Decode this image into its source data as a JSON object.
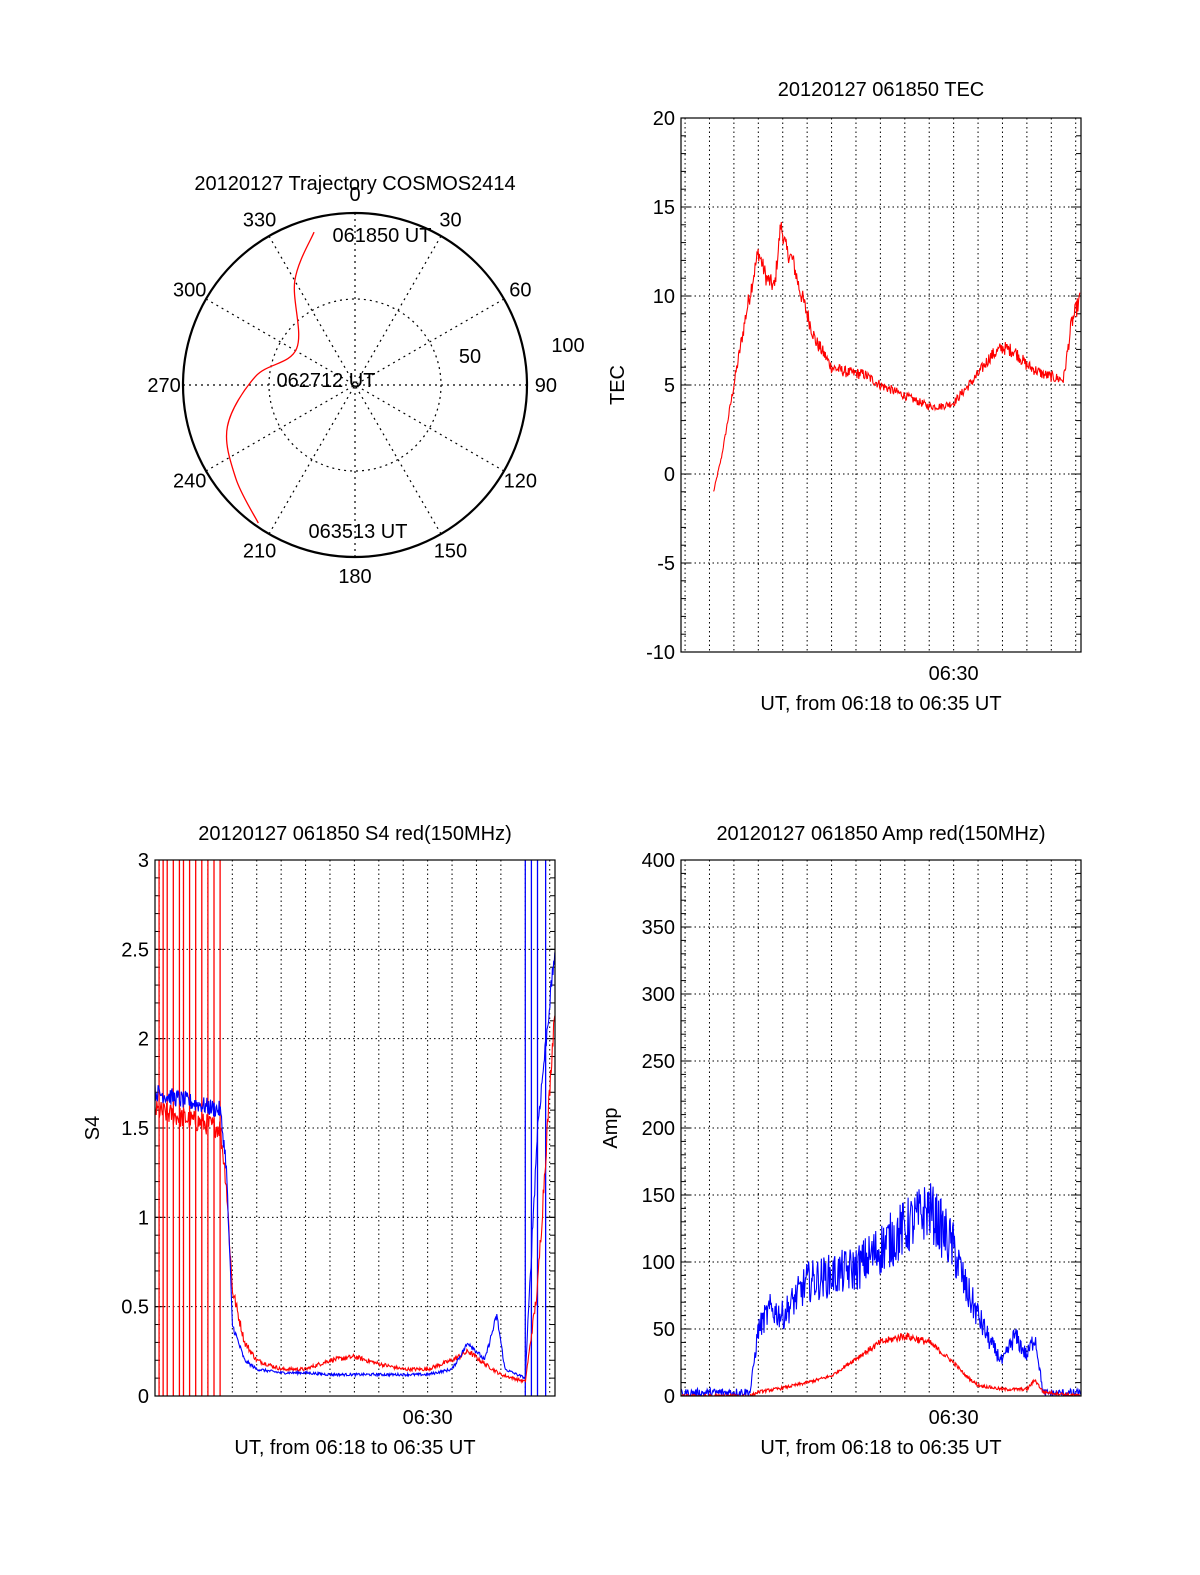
{
  "colors": {
    "red": "#ff0000",
    "blue": "#0000ff",
    "axis": "#000000",
    "grid": "#000000"
  },
  "chart_data": [
    {
      "id": "polar",
      "type": "polar",
      "title": "20120127 Trajectory COSMOS2414",
      "azimuth_labels": [
        "0",
        "30",
        "60",
        "90",
        "120",
        "150",
        "180",
        "210",
        "240",
        "270",
        "300",
        "330"
      ],
      "radial_labels": [
        "50",
        "100"
      ],
      "rlim": [
        0,
        100
      ],
      "grid": true,
      "track": {
        "color": "red",
        "points": [
          [
            345,
            92
          ],
          [
            330,
            70
          ],
          [
            302,
            40
          ],
          [
            275,
            58
          ],
          [
            252,
            78
          ],
          [
            232,
            88
          ],
          [
            215,
            98
          ]
        ]
      },
      "annotations": [
        {
          "text": "061850 UT",
          "az": 4,
          "r": 86
        },
        {
          "text": "062712 UT",
          "az": 275,
          "r": 30
        },
        {
          "text": "063513 UT",
          "az": 180,
          "r": 100
        }
      ]
    },
    {
      "id": "tec",
      "type": "line",
      "title": "20120127 061850 TEC",
      "xlabel": "UT, from 06:18 to 06:35 UT",
      "ylabel": "TEC",
      "xlim": [
        "06:18:50",
        "06:35:13"
      ],
      "ylim": [
        -10,
        20
      ],
      "yticks": [
        "-10",
        "-5",
        "0",
        "5",
        "10",
        "15",
        "20"
      ],
      "xtick_labels": [
        {
          "t": "06:30:00",
          "label": "06:30"
        }
      ],
      "grid": true,
      "series": [
        {
          "color": "red",
          "noise": 0.5,
          "x": [
            "06:20:10",
            "06:20:30",
            "06:21:00",
            "06:21:30",
            "06:22:00",
            "06:22:20",
            "06:22:40",
            "06:22:55",
            "06:23:10",
            "06:23:25",
            "06:23:40",
            "06:24:00",
            "06:24:20",
            "06:24:40",
            "06:25:00",
            "06:25:40",
            "06:26:20",
            "06:27:00",
            "06:27:40",
            "06:28:10",
            "06:28:40",
            "06:29:00",
            "06:29:30",
            "06:30:00",
            "06:30:30",
            "06:31:00",
            "06:31:30",
            "06:32:00",
            "06:32:30",
            "06:33:00",
            "06:33:40",
            "06:34:10",
            "06:34:30",
            "06:34:50",
            "06:35:10"
          ],
          "y": [
            -1.0,
            1.0,
            5.0,
            9.0,
            12.5,
            11.0,
            10.5,
            14.0,
            12.5,
            12.0,
            10.5,
            9.0,
            7.5,
            6.8,
            6.0,
            5.7,
            5.6,
            5.0,
            4.6,
            4.3,
            4.0,
            3.8,
            3.8,
            4.0,
            4.8,
            5.6,
            6.6,
            7.1,
            6.9,
            6.1,
            5.6,
            5.4,
            5.3,
            8.5,
            9.8
          ]
        }
      ]
    },
    {
      "id": "s4",
      "type": "line",
      "title": "20120127 061850 S4 red(150MHz)",
      "xlabel": "UT, from 06:18 to 06:35 UT",
      "ylabel": "S4",
      "xlim": [
        "06:18:50",
        "06:35:13"
      ],
      "ylim": [
        0,
        3
      ],
      "yticks": [
        "0",
        "0.5",
        "1",
        "1.5",
        "2",
        "2.5",
        "3"
      ],
      "xtick_labels": [
        {
          "t": "06:30:00",
          "label": "06:30"
        }
      ],
      "grid": true,
      "series": [
        {
          "color": "red",
          "noise": 0.06,
          "x": [
            "06:18:50",
            "06:21:30",
            "06:21:45",
            "06:22:00",
            "06:22:30",
            "06:23:00",
            "06:24:00",
            "06:25:00",
            "06:26:00",
            "06:27:00",
            "06:28:00",
            "06:29:00",
            "06:30:00",
            "06:31:00",
            "06:31:40",
            "06:32:20",
            "06:33:00",
            "06:34:00",
            "06:34:30",
            "06:35:13"
          ],
          "y": [
            1.6,
            1.5,
            1.2,
            0.6,
            0.3,
            0.2,
            0.15,
            0.15,
            0.2,
            0.22,
            0.18,
            0.15,
            0.15,
            0.2,
            0.25,
            0.18,
            0.12,
            0.08,
            0.6,
            2.2
          ]
        },
        {
          "color": "blue",
          "noise": 0.05,
          "x": [
            "06:18:50",
            "06:21:30",
            "06:21:45",
            "06:22:00",
            "06:22:30",
            "06:23:00",
            "06:24:00",
            "06:25:00",
            "06:26:00",
            "06:27:00",
            "06:28:00",
            "06:29:00",
            "06:30:00",
            "06:31:00",
            "06:31:40",
            "06:32:20",
            "06:32:50",
            "06:33:10",
            "06:34:00",
            "06:34:30",
            "06:35:13"
          ],
          "y": [
            1.7,
            1.6,
            1.3,
            0.4,
            0.2,
            0.15,
            0.13,
            0.13,
            0.12,
            0.12,
            0.12,
            0.12,
            0.12,
            0.15,
            0.3,
            0.2,
            0.45,
            0.15,
            0.1,
            1.5,
            2.5
          ]
        }
      ],
      "spikes": [
        {
          "color": "red",
          "x": [
            "06:19:00",
            "06:19:10",
            "06:19:20",
            "06:19:35",
            "06:19:50",
            "06:20:00",
            "06:20:15",
            "06:20:30",
            "06:20:45",
            "06:21:00",
            "06:21:15",
            "06:21:30"
          ]
        },
        {
          "color": "blue",
          "x": [
            "06:34:00",
            "06:34:15",
            "06:34:30",
            "06:34:50"
          ]
        }
      ]
    },
    {
      "id": "amp",
      "type": "line",
      "title": "20120127 061850 Amp red(150MHz)",
      "xlabel": "UT, from 06:18 to 06:35 UT",
      "ylabel": "Amp",
      "xlim": [
        "06:18:50",
        "06:35:13"
      ],
      "ylim": [
        0,
        400
      ],
      "yticks": [
        "0",
        "50",
        "100",
        "150",
        "200",
        "250",
        "300",
        "350",
        "400"
      ],
      "xtick_labels": [
        {
          "t": "06:30:00",
          "label": "06:30"
        }
      ],
      "grid": true,
      "series": [
        {
          "color": "blue",
          "noise": 22,
          "x": [
            "06:18:50",
            "06:21:40",
            "06:22:00",
            "06:22:30",
            "06:23:00",
            "06:24:00",
            "06:25:00",
            "06:26:00",
            "06:27:00",
            "06:28:00",
            "06:29:00",
            "06:30:00",
            "06:30:30",
            "06:31:00",
            "06:31:30",
            "06:32:00",
            "06:32:30",
            "06:33:00",
            "06:33:20",
            "06:33:40",
            "06:35:13"
          ],
          "y": [
            2,
            3,
            50,
            65,
            60,
            85,
            90,
            95,
            110,
            125,
            140,
            110,
            80,
            60,
            40,
            25,
            45,
            30,
            45,
            2,
            2
          ]
        },
        {
          "color": "red",
          "noise": 8,
          "x": [
            "06:18:50",
            "06:21:40",
            "06:22:00",
            "06:23:00",
            "06:24:00",
            "06:25:00",
            "06:26:00",
            "06:27:00",
            "06:28:00",
            "06:29:00",
            "06:30:00",
            "06:30:30",
            "06:31:00",
            "06:32:00",
            "06:33:00",
            "06:33:20",
            "06:33:40",
            "06:35:13"
          ],
          "y": [
            0,
            0,
            3,
            6,
            10,
            15,
            28,
            40,
            45,
            40,
            25,
            15,
            8,
            5,
            5,
            12,
            3,
            0
          ]
        }
      ]
    }
  ]
}
